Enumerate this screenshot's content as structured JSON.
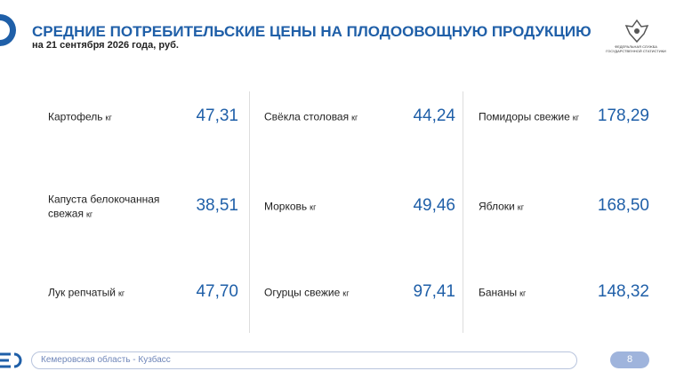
{
  "header": {
    "title": "СРЕДНИЕ ПОТРЕБИТЕЛЬСКИЕ ЦЕНЫ НА ПЛОДООВОЩНУЮ ПРОДУКЦИЮ",
    "subtitle": "на 21 сентября 2026 года, руб."
  },
  "logo": {
    "text": "ФЕДЕРАЛЬНАЯ СЛУЖБА ГОСУДАРСТВЕННОЙ СТАТИСТИКИ"
  },
  "columns": [
    [
      {
        "name": "Картофель",
        "unit": "кг",
        "price": "47,31"
      },
      {
        "name": "Капуста белокочанная свежая",
        "unit": "кг",
        "price": "38,51"
      },
      {
        "name": "Лук репчатый",
        "unit": "кг",
        "price": "47,70"
      }
    ],
    [
      {
        "name": "Свёкла столовая",
        "unit": "кг",
        "price": "44,24"
      },
      {
        "name": "Морковь",
        "unit": "кг",
        "price": "49,46"
      },
      {
        "name": "Огурцы свежие",
        "unit": "кг",
        "price": "97,41"
      }
    ],
    [
      {
        "name": "Помидоры свежие",
        "unit": "кг",
        "price": "178,29"
      },
      {
        "name": "Яблоки",
        "unit": "кг",
        "price": "168,50"
      },
      {
        "name": "Бананы",
        "unit": "кг",
        "price": "148,32"
      }
    ]
  ],
  "footer": {
    "region": "Кемеровская область - Кузбасс",
    "page": 8
  }
}
